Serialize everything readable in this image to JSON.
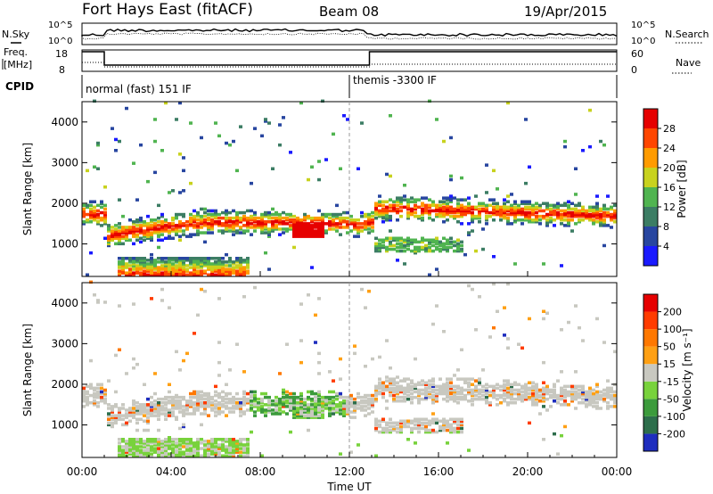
{
  "header": {
    "title": "Fort Hays East (fitACF)",
    "beam": "Beam 08",
    "date": "19/Apr/2015"
  },
  "noise_panel": {
    "left_label": "N.Sky",
    "right_label": "N.Search",
    "left_ticks": [
      "10^5",
      "10^0"
    ],
    "right_ticks": [
      "10^5",
      "10^0"
    ]
  },
  "freq_panel": {
    "left_label_line1": "Freq.",
    "left_label_line2": "[MHz]",
    "right_label": "Nave",
    "left_ticks": [
      "18",
      "8"
    ],
    "right_ticks": [
      "60",
      "0"
    ]
  },
  "cpid": {
    "label": "CPID",
    "segments": [
      {
        "text": "normal (fast) 151 IF",
        "start_hour": 0
      },
      {
        "text": "themis -3300 IF",
        "start_hour": 12
      }
    ]
  },
  "x_axis": {
    "label": "Time UT",
    "ticks": [
      "00:00",
      "04:00",
      "08:00",
      "12:00",
      "16:00",
      "20:00",
      "00:00"
    ],
    "tick_hours": [
      0,
      4,
      8,
      12,
      16,
      20,
      24
    ]
  },
  "chart_data": [
    {
      "type": "heatmap",
      "name": "power",
      "ylabel": "Slant Range [km]",
      "yticks": [
        1000,
        2000,
        3000,
        4000
      ],
      "ylim": [
        200,
        4500
      ],
      "xlim": [
        0,
        24
      ],
      "colorbar_label": "Power [dB]",
      "colorbar_ticks": [
        "4",
        "8",
        "12",
        "16",
        "20",
        "24",
        "28"
      ],
      "colorbar_colors": [
        "#1a1aff",
        "#2846a0",
        "#3c7d64",
        "#50b450",
        "#c8d21e",
        "#ff9b00",
        "#ff4600",
        "#e60000"
      ],
      "features": [
        {
          "desc": "main echo band",
          "start_hour": 0.0,
          "end_hour": 1.0,
          "range_km": 1700
        },
        {
          "desc": "main echo band",
          "start_hour": 1.0,
          "end_hour": 12.5,
          "range_km": 1500
        },
        {
          "desc": "main echo band",
          "start_hour": 13.0,
          "end_hour": 24.0,
          "range_km": 1700
        },
        {
          "desc": "strong patch",
          "start_hour": 9.5,
          "end_hour": 10.7,
          "range_km": 1300
        },
        {
          "desc": "near range ground scatter",
          "start_hour": 1.5,
          "end_hour": 7.5,
          "range_km": 400
        }
      ]
    },
    {
      "type": "heatmap",
      "name": "velocity",
      "ylabel": "Slant Range [km]",
      "yticks": [
        1000,
        2000,
        3000,
        4000
      ],
      "ylim": [
        200,
        4500
      ],
      "xlim": [
        0,
        24
      ],
      "colorbar_label": "Velocity [m s⁻¹]",
      "colorbar_ticks": [
        "200",
        "100",
        "50",
        "15",
        "-15",
        "-50",
        "-100",
        "-200"
      ],
      "colorbar_colors": [
        "#1e2dbe",
        "#2d6e4b",
        "#3c9b3c",
        "#78d23c",
        "#c8c8c0",
        "#ffa014",
        "#ff7800",
        "#ff3c00",
        "#e60000"
      ],
      "features": [
        {
          "desc": "ground scatter band (grey)",
          "start_hour": 0.0,
          "end_hour": 24.0,
          "range_km": 1700
        },
        {
          "desc": "green negative-velocity region",
          "start_hour": 7.5,
          "end_hour": 11.5,
          "range_km": 1500
        }
      ]
    }
  ],
  "colors": {
    "frame": "#000000",
    "grey_scatter": "#c8c8c0"
  }
}
